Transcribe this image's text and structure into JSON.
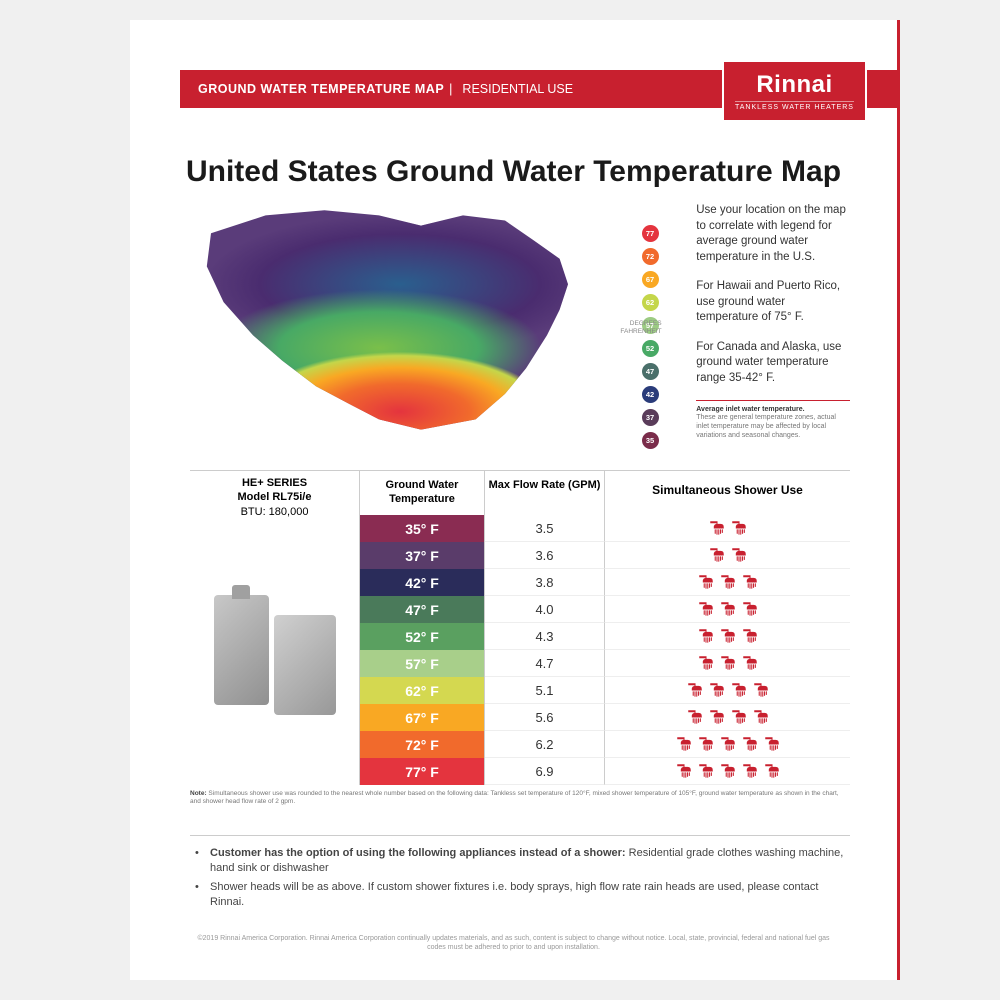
{
  "header": {
    "title": "GROUND WATER TEMPERATURE MAP",
    "subtitle": "RESIDENTIAL USE"
  },
  "logo": {
    "brand": "Rinnai",
    "tagline": "TANKLESS WATER HEATERS"
  },
  "main_title": "United States Ground Water Temperature Map",
  "map": {
    "degrees_label": "DEGREES\nFAHRENHEIT",
    "legend": [
      {
        "value": "77",
        "color": "#e4343e"
      },
      {
        "value": "72",
        "color": "#f16a2c"
      },
      {
        "value": "67",
        "color": "#f9a823"
      },
      {
        "value": "62",
        "color": "#c4d64a"
      },
      {
        "value": "57",
        "color": "#9ccb83"
      },
      {
        "value": "52",
        "color": "#48a965"
      },
      {
        "value": "47",
        "color": "#4a6f6a"
      },
      {
        "value": "42",
        "color": "#2a3c7a"
      },
      {
        "value": "37",
        "color": "#5a3c5a"
      },
      {
        "value": "35",
        "color": "#7a2c4a"
      }
    ],
    "info": {
      "p1": "Use your location on the map to correlate with legend for average ground water temperature in the U.S.",
      "p2": "For Hawaii and Puerto Rico, use ground water temperature of 75° F.",
      "p3": "For Canada and Alaska, use ground water temperature range 35-42° F.",
      "note_title": "Average inlet water temperature.",
      "note_text": "These are general temperature zones, actual inlet temperature may be affected by local variations and seasonal changes."
    }
  },
  "table": {
    "product": {
      "series": "HE+ SERIES",
      "model": "Model RL75i/e",
      "btu": "BTU: 180,000"
    },
    "headers": {
      "temp": "Ground Water Temperature",
      "flow": "Max Flow Rate (GPM)",
      "shower": "Simultaneous Shower Use"
    },
    "rows": [
      {
        "temp": "35° F",
        "color": "#8a2c52",
        "flow": "3.5",
        "showers": 2
      },
      {
        "temp": "37° F",
        "color": "#5a3c6a",
        "flow": "3.6",
        "showers": 2
      },
      {
        "temp": "42° F",
        "color": "#2a2c5a",
        "flow": "3.8",
        "showers": 3
      },
      {
        "temp": "47° F",
        "color": "#4a7a5a",
        "flow": "4.0",
        "showers": 3
      },
      {
        "temp": "52° F",
        "color": "#5aa060",
        "flow": "4.3",
        "showers": 3
      },
      {
        "temp": "57° F",
        "color": "#a8cf8a",
        "flow": "4.7",
        "showers": 3
      },
      {
        "temp": "62° F",
        "color": "#d4d850",
        "flow": "5.1",
        "showers": 4
      },
      {
        "temp": "67° F",
        "color": "#f9a823",
        "flow": "5.6",
        "showers": 4
      },
      {
        "temp": "72° F",
        "color": "#f16a2c",
        "flow": "6.2",
        "showers": 5
      },
      {
        "temp": "77° F",
        "color": "#e4343e",
        "flow": "6.9",
        "showers": 5
      }
    ],
    "note_label": "Note:",
    "note_text": "Simultaneous shower use was rounded to the nearest whole number based on the following data: Tankless set temperature of 120°F, mixed shower temperature of 105°F, ground water temperature as shown in the chart, and shower head flow rate of 2 gpm.",
    "shower_icon_color": "#c8202f"
  },
  "bullets": {
    "b1_bold": "Customer has the option of using the following appliances instead of a shower:",
    "b1_rest": " Residential grade clothes washing machine, hand sink or dishwasher",
    "b2": "Shower heads will be as above. If custom shower fixtures  i.e. body sprays, high flow rate rain heads are used, please contact Rinnai."
  },
  "copyright": "©2019 Rinnai America Corporation. Rinnai America Corporation continually updates materials, and as such, content is subject to change without notice. Local, state, provincial, federal and national fuel gas codes must be adhered to prior to and upon installation."
}
